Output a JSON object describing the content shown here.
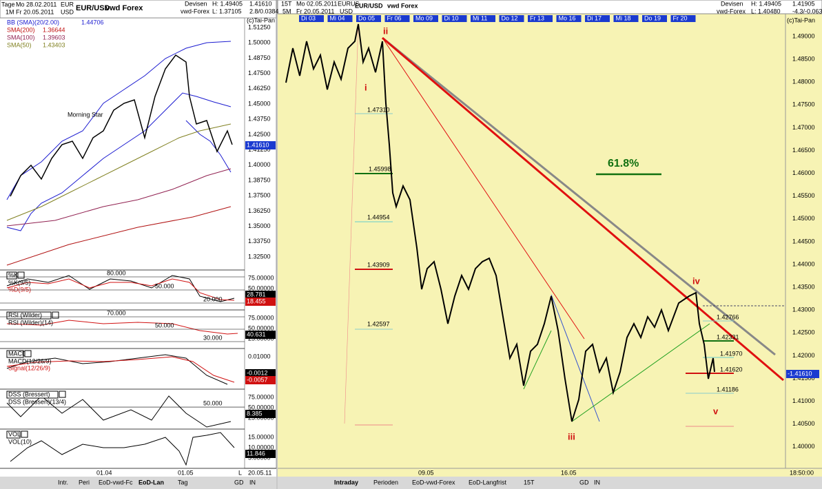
{
  "left": {
    "header": [
      "Tage",
      "Mo 28.02.2011",
      "EUR",
      "1M",
      "Fr 20.05.2011",
      "USD",
      "EUR/USD",
      "vwd Forex",
      "Devisen",
      "vwd-Forex",
      "H: 1.49405",
      "L: 1.37105",
      "1.41610",
      "2.8/0.0384"
    ],
    "legend": [
      {
        "name": "BB (SMA)(20/2.00)",
        "value": "1.44706"
      },
      {
        "name": "SMA(200)",
        "value": "1.36644"
      },
      {
        "name": "SMA(100)",
        "value": "1.39603"
      },
      {
        "name": "SMA(50)",
        "value": "1.43403"
      }
    ],
    "copyright": "(c)Tai-Pan",
    "annotation": "Morning Star",
    "yaxis": [
      "1.51250",
      "1.50000",
      "1.48750",
      "1.47500",
      "1.46250",
      "1.45000",
      "1.43750",
      "1.42500",
      "1.41250",
      "1.40000",
      "1.38750",
      "1.37500",
      "1.36250",
      "1.35000",
      "1.33750",
      "1.32500"
    ],
    "price_tag": "1.41610",
    "indicators": [
      {
        "name": "%K",
        "lines": [
          "%K(9/5)",
          "%D(9/5)"
        ],
        "levels": [
          "80.000",
          "50.000",
          "20.000"
        ],
        "axis": [
          "75.00000",
          "50.00000",
          "25.00000"
        ],
        "tags": [
          "28.781",
          "18.455"
        ]
      },
      {
        "name": "RSI (Wilder)",
        "lines": [
          "RSI (Wilder)(14)"
        ],
        "levels": [
          "70.000",
          "50.000",
          "30.000"
        ],
        "axis": [
          "75.00000",
          "50.00000",
          "25.00000"
        ],
        "tags": [
          "40.631"
        ]
      },
      {
        "name": "MACD",
        "lines": [
          "MACD(12/26/9)",
          "Signal(12/26/9)"
        ],
        "levels": [],
        "axis": [
          "0.01000"
        ],
        "tags": [
          "-0.0012",
          "-0.0057"
        ]
      },
      {
        "name": "DSS (Bressert)",
        "lines": [
          "DSS (Bressert)(13/4)"
        ],
        "levels": [
          "50.000"
        ],
        "axis": [
          "75.00000",
          "50.00000",
          "25.00000"
        ],
        "tags": [
          "8.385"
        ]
      },
      {
        "name": "VOL",
        "lines": [
          "VOL(10)"
        ],
        "levels": [],
        "axis": [
          "15.00000",
          "10.00000",
          "5.00000"
        ],
        "tags": [
          "11.846"
        ]
      }
    ],
    "xaxis": [
      "01.04",
      "01.05"
    ],
    "date": "20.05.11",
    "scale": "L",
    "tabs": [
      "Intr.",
      "Peri",
      "EoD-vwd-Fc",
      "EoD-Lan",
      "Tag",
      "GD",
      "IN"
    ]
  },
  "right": {
    "header": [
      "15T",
      "Mo 02.05.2011",
      "EURUS",
      "5M",
      "Fr 20.05.2011",
      "USD",
      "EUR/USD",
      "vwd Forex",
      "Devisen",
      "vwd-Forex",
      "H: 1.49405",
      "L: 1.40480",
      "1.41905",
      "-4.3/-0.063"
    ],
    "days": [
      "Di 03",
      "Mi 04",
      "Do 05",
      "Fr 06",
      "Mo 09",
      "Di 10",
      "Mi 11",
      "Do 12",
      "Fr 13",
      "Mo 16",
      "Di 17",
      "Mi 18",
      "Do 19",
      "Fr 20"
    ],
    "copyright": "(c)Tai-Pan",
    "yaxis": [
      "1.49000",
      "1.48500",
      "1.48000",
      "1.47500",
      "1.47000",
      "1.46500",
      "1.46000",
      "1.45500",
      "1.45000",
      "1.44500",
      "1.44000",
      "1.43500",
      "1.43000",
      "1.42500",
      "1.42000",
      "1.41500",
      "1.41000",
      "1.40500",
      "1.40000"
    ],
    "price_tag": "-1.41610",
    "fib_left": [
      "1.47310",
      "1.45998",
      "1.44954",
      "1.43909",
      "1.42597"
    ],
    "fib_right": [
      "1.42766",
      "1.42331",
      "1.41970",
      "1.41620",
      "1.41186"
    ],
    "retracement": "61.8%",
    "waves": [
      "i",
      "ii",
      "iii",
      "iv",
      "v"
    ],
    "xaxis": [
      "09.05",
      "16.05",
      "18:50:00"
    ],
    "tabs": [
      "Intraday",
      "Perioden",
      "EoD-vwd-Forex",
      "EoD-Langfrist",
      "15T",
      "GD",
      "IN"
    ]
  }
}
